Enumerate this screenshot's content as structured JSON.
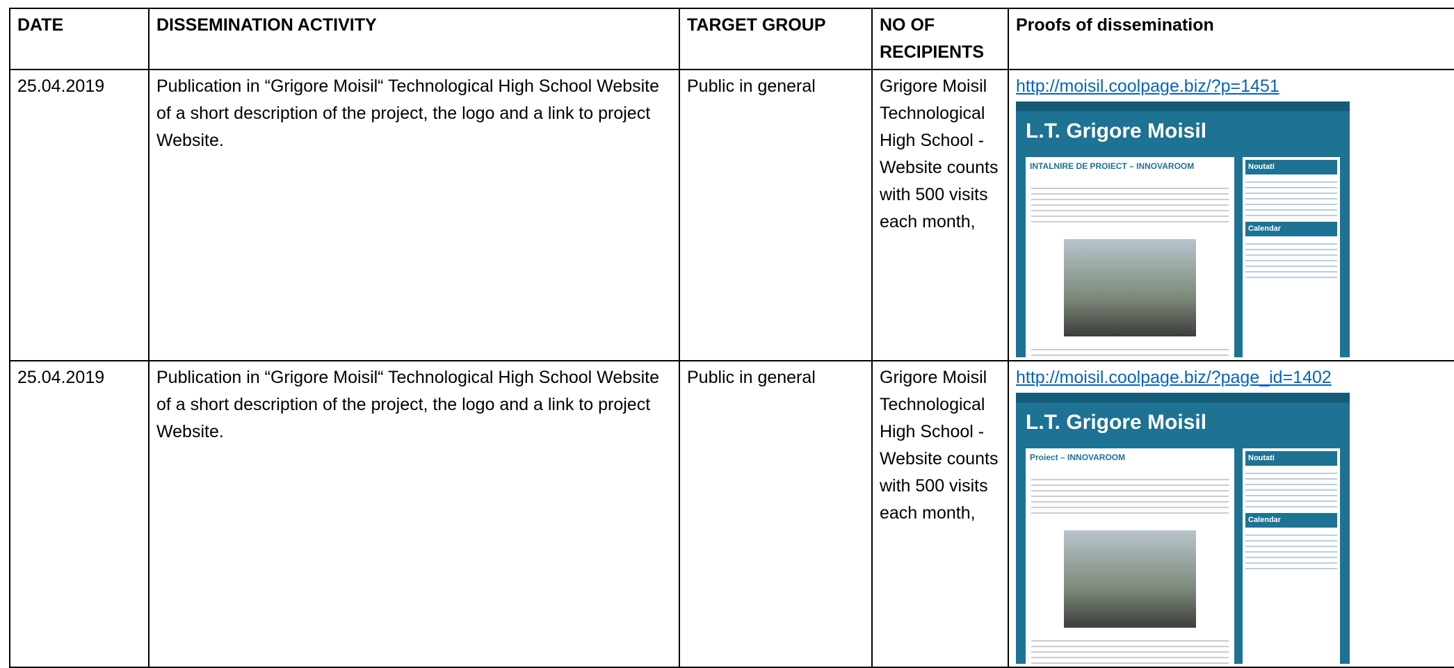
{
  "table": {
    "header": [
      "DATE",
      "DISSEMINATION ACTIVITY",
      "TARGET GROUP",
      "NO OF RECIPIENTS",
      "Proofs of dissemination"
    ],
    "rows": [
      [
        "25.04.2019",
        "Publication in “Grigore Moisil“ Technological High School Website of a short description of the project, the logo and a link to project Website.",
        "Public in general",
        "Grigore Moisil Technological High School - Website counts with 500 visits each month,",
        "http://moisil.coolpage.biz/?p=1451"
      ],
      [
        "25.04.2019",
        "Publication in “Grigore Moisil“ Technological High School Website of a short description of the project, the logo and a link to project Website.",
        "Public in general",
        "Grigore Moisil Technological High School - Website counts with 500 visits each month,",
        "http://moisil.coolpage.biz/?page_id=1402"
      ]
    ]
  },
  "screenshots": [
    {
      "site_title": "L.T. Grigore Moisil",
      "heading": "INTALNIRE DE PROIECT – INNOVAROOM",
      "sidebar": [
        "Noutati",
        "Calendar"
      ]
    },
    {
      "site_title": "L.T. Grigore Moisil",
      "heading": "Proiect – INNOVAROOM",
      "sidebar": [
        "Noutati",
        "Calendar"
      ]
    }
  ]
}
